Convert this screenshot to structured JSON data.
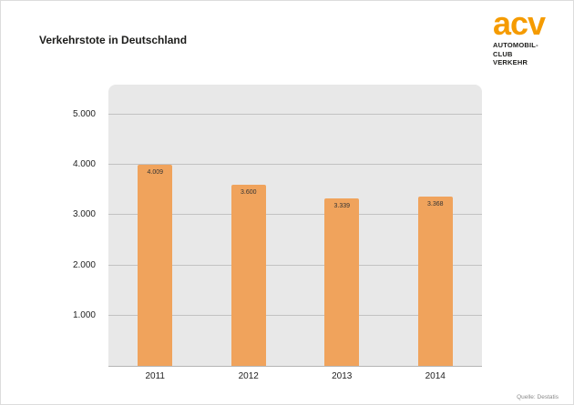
{
  "source_note": "Quelle: Destatis",
  "logo": {
    "text": "acv",
    "subtitle_line1": "AUTOMOBIL-CLUB",
    "subtitle_line2": "VERKEHR",
    "color": "#f59b00"
  },
  "chart_data": {
    "type": "bar",
    "title": "Verkehrstote in Deutschland",
    "categories": [
      "2011",
      "2012",
      "2013",
      "2014"
    ],
    "values": [
      4009,
      3600,
      3339,
      3368
    ],
    "value_labels": [
      "4.009",
      "3.600",
      "3.339",
      "3.368"
    ],
    "xlabel": "",
    "ylabel": "",
    "ylim": [
      0,
      5600
    ],
    "yticks": [
      1000,
      2000,
      3000,
      4000,
      5000
    ],
    "ytick_labels": [
      "1.000",
      "2.000",
      "3.000",
      "4.000",
      "5.000"
    ],
    "grid": true,
    "legend": false,
    "bar_color": "#f0a35c",
    "plot_bg": "#e8e8e8"
  }
}
